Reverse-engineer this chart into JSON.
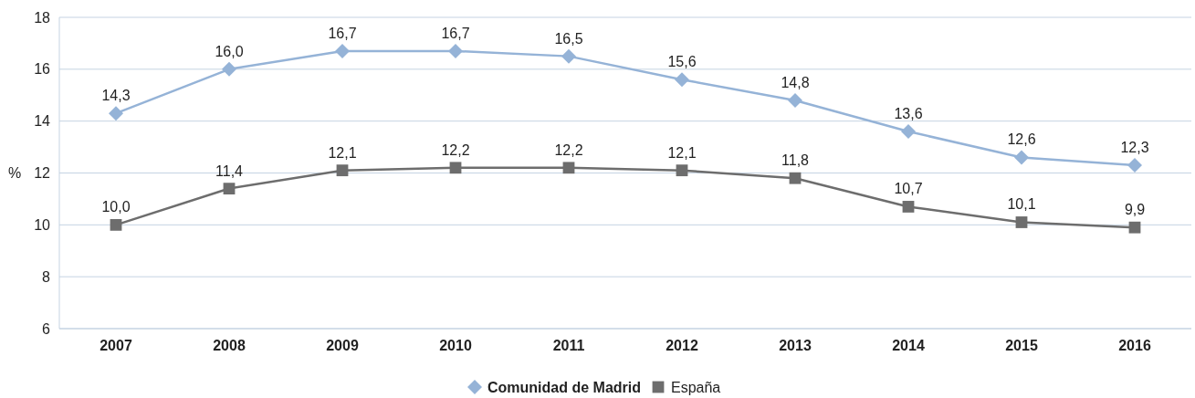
{
  "chart_data": {
    "type": "line",
    "ylabel": "%",
    "categories": [
      "2007",
      "2008",
      "2009",
      "2010",
      "2011",
      "2012",
      "2013",
      "2014",
      "2015",
      "2016"
    ],
    "ylim": [
      6,
      18
    ],
    "yticks": [
      6,
      8,
      10,
      12,
      14,
      16,
      18
    ],
    "grid": "y",
    "legend": "bottom",
    "series": [
      {
        "name": "Comunidad de Madrid",
        "color": "#95b3d7",
        "marker": "diamond",
        "values": [
          14.3,
          16.0,
          16.7,
          16.7,
          16.5,
          15.6,
          14.8,
          13.6,
          12.6,
          12.3
        ],
        "value_labels": [
          "14,3",
          "16,0",
          "16,7",
          "16,7",
          "16,5",
          "15,6",
          "14,8",
          "13,6",
          "12,6",
          "12,3"
        ]
      },
      {
        "name": "España",
        "color": "#6d6d6d",
        "marker": "square",
        "values": [
          10.0,
          11.4,
          12.1,
          12.2,
          12.2,
          12.1,
          11.8,
          10.7,
          10.1,
          9.9
        ],
        "value_labels": [
          "10,0",
          "11,4",
          "12,1",
          "12,2",
          "12,2",
          "12,1",
          "11,8",
          "10,7",
          "10,1",
          "9,9"
        ]
      }
    ]
  }
}
